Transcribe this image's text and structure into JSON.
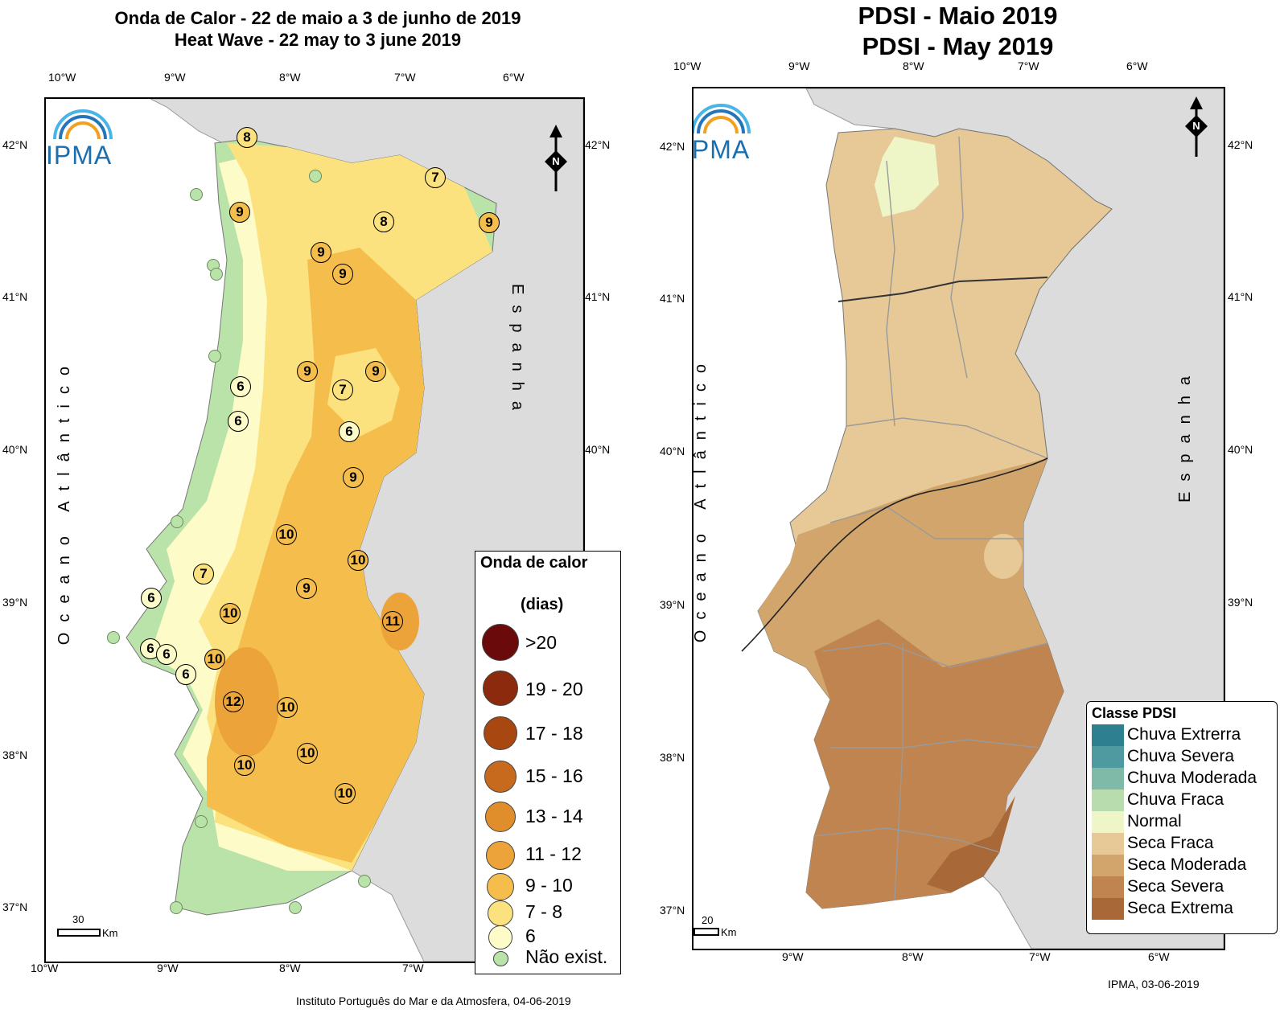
{
  "left_map": {
    "title_pt": "Onda de Calor  - 22 de maio a 3 de junho de 2019",
    "title_en": "Heat Wave - 22 may to 3 june 2019",
    "lon_ticks": [
      "10°W",
      "9°W",
      "8°W",
      "7°W",
      "6°W"
    ],
    "lat_ticks": [
      "42°N",
      "41°N",
      "40°N",
      "39°N",
      "38°N",
      "37°N"
    ],
    "ocean_label": "Oceano Atlântico",
    "country_label": "Espanha",
    "logo_text": "IPMA",
    "north_label": "N",
    "scale_value": "30",
    "scale_unit": "Km",
    "footer": "Instituto Português do Mar e da Atmosfera, 04-06-2019",
    "legend": {
      "title": "Onda de calor",
      "subtitle": "(dias)",
      "items": [
        {
          "label": ">20",
          "color": "#6b0a0a"
        },
        {
          "label": "19 - 20",
          "color": "#8c2a0d"
        },
        {
          "label": "17 - 18",
          "color": "#a8470f"
        },
        {
          "label": "15 - 16",
          "color": "#c76a1e"
        },
        {
          "label": "13 - 14",
          "color": "#e08e2b"
        },
        {
          "label": "11 - 12",
          "color": "#eca33a"
        },
        {
          "label": "9 - 10",
          "color": "#f4bd4c"
        },
        {
          "label": "7 - 8",
          "color": "#fbe27e"
        },
        {
          "label": "6",
          "color": "#fdfbc8"
        },
        {
          "label": "Não exist.",
          "color": "#b9e3a8"
        }
      ]
    },
    "stations": [
      {
        "value": "8",
        "color": "#fbe27e"
      },
      {
        "value": "7",
        "color": "#fbe27e"
      },
      {
        "value": "9",
        "color": "#f4bd4c"
      },
      {
        "value": "8",
        "color": "#fbe27e"
      },
      {
        "value": "9",
        "color": "#f4bd4c"
      },
      {
        "value": "9",
        "color": "#f4bd4c"
      },
      {
        "value": "9",
        "color": "#f4bd4c"
      },
      {
        "value": "9",
        "color": "#f4bd4c"
      },
      {
        "value": "9",
        "color": "#f4bd4c"
      },
      {
        "value": "6",
        "color": "#fdfbc8"
      },
      {
        "value": "7",
        "color": "#fbe27e"
      },
      {
        "value": "6",
        "color": "#fdfbc8"
      },
      {
        "value": "6",
        "color": "#fdfbc8"
      },
      {
        "value": "9",
        "color": "#f4bd4c"
      },
      {
        "value": "10",
        "color": "#f4bd4c"
      },
      {
        "value": "10",
        "color": "#f4bd4c"
      },
      {
        "value": "7",
        "color": "#fbe27e"
      },
      {
        "value": "9",
        "color": "#f4bd4c"
      },
      {
        "value": "6",
        "color": "#fdfbc8"
      },
      {
        "value": "10",
        "color": "#f4bd4c"
      },
      {
        "value": "11",
        "color": "#eca33a"
      },
      {
        "value": "6",
        "color": "#fdfbc8"
      },
      {
        "value": "6",
        "color": "#fdfbc8"
      },
      {
        "value": "10",
        "color": "#f4bd4c"
      },
      {
        "value": "6",
        "color": "#fdfbc8"
      },
      {
        "value": "12",
        "color": "#eca33a"
      },
      {
        "value": "10",
        "color": "#f4bd4c"
      },
      {
        "value": "10",
        "color": "#f4bd4c"
      },
      {
        "value": "10",
        "color": "#f4bd4c"
      },
      {
        "value": "10",
        "color": "#f4bd4c"
      }
    ]
  },
  "right_map": {
    "title_pt": "PDSI - Maio 2019",
    "title_en": "PDSI - May 2019",
    "lon_ticks": [
      "10°W",
      "9°W",
      "8°W",
      "7°W",
      "6°W"
    ],
    "lat_ticks": [
      "42°N",
      "41°N",
      "40°N",
      "39°N",
      "38°N",
      "37°N"
    ],
    "ocean_label": "Oceano Atlântico",
    "country_label": "Espanha",
    "logo_text": "IPMA",
    "north_label": "N",
    "scale_value": "20",
    "scale_unit": "Km",
    "footer": "IPMA, 03-06-2019",
    "legend": {
      "title": "Classe PDSI",
      "items": [
        {
          "label": "Chuva Extrerra",
          "color": "#2e7f8f"
        },
        {
          "label": "Chuva Severa",
          "color": "#4f9aa0"
        },
        {
          "label": "Chuva Moderada",
          "color": "#7fbaa8"
        },
        {
          "label": "Chuva Fraca",
          "color": "#b9dcae"
        },
        {
          "label": "Normal",
          "color": "#eef6c8"
        },
        {
          "label": "Seca Fraca",
          "color": "#e6c997"
        },
        {
          "label": "Seca Moderada",
          "color": "#d2a56d"
        },
        {
          "label": "Seca Severa",
          "color": "#bf844f"
        },
        {
          "label": "Seca Extrema",
          "color": "#a86838"
        }
      ]
    }
  }
}
